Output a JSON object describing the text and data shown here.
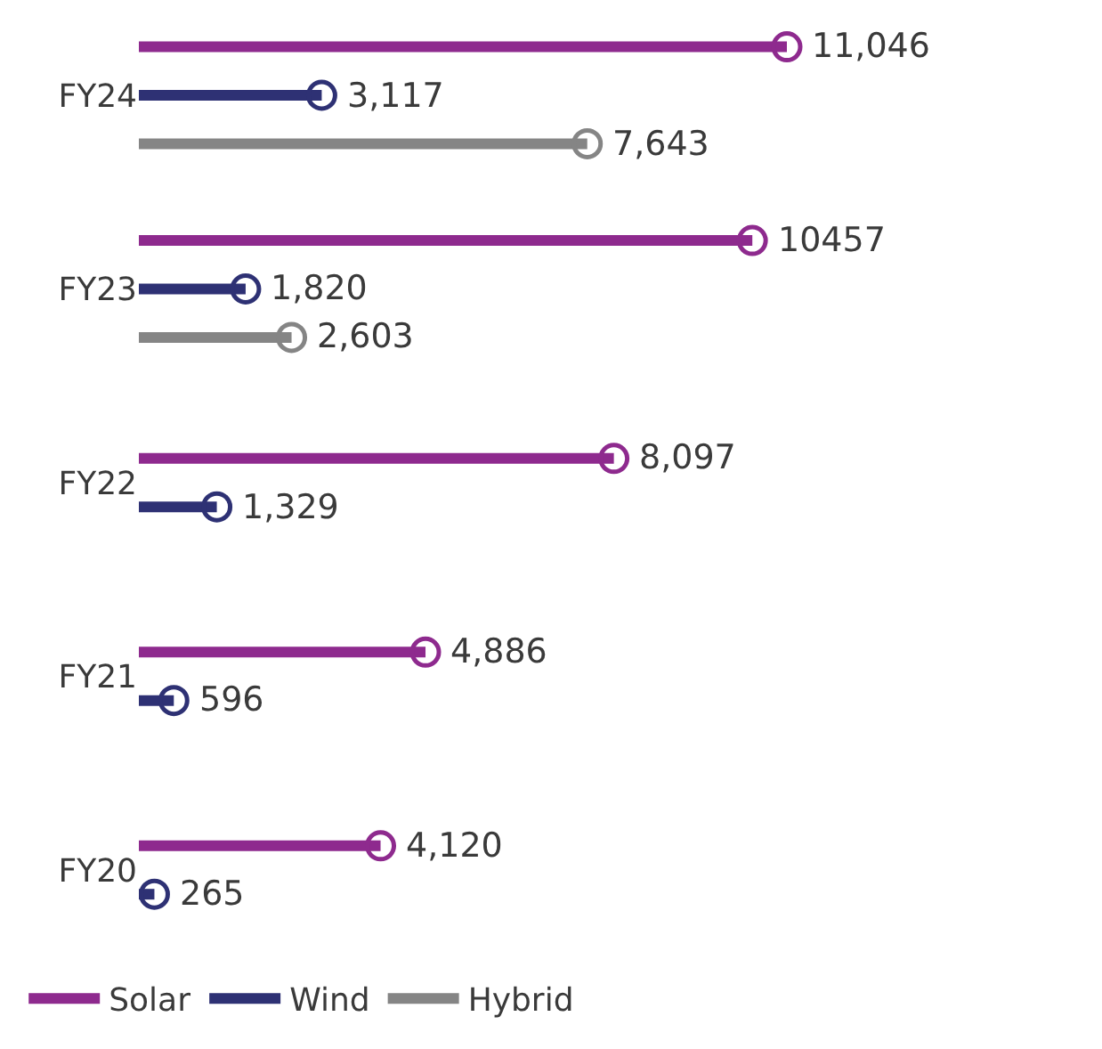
{
  "chart_data": {
    "type": "lollipop",
    "orientation": "horizontal",
    "categories": [
      "FY24",
      "FY23",
      "FY22",
      "FY21",
      "FY20"
    ],
    "series": [
      {
        "name": "Solar",
        "color": "#8e2a8e",
        "values": [
          11046,
          10457,
          8097,
          4886,
          4120
        ],
        "value_labels": [
          "11,046",
          "10457",
          "8,097",
          "4,886",
          "4,120"
        ]
      },
      {
        "name": "Wind",
        "color": "#2e3174",
        "values": [
          3117,
          1820,
          1329,
          596,
          265
        ],
        "value_labels": [
          "3,117",
          "1,820",
          "1,329",
          "596",
          "265"
        ]
      },
      {
        "name": "Hybrid",
        "color": "#858585",
        "values": [
          7643,
          2603,
          null,
          null,
          null
        ],
        "value_labels": [
          "7,643",
          "2,603",
          null,
          null,
          null
        ]
      }
    ],
    "tick_labels": "y",
    "legend": "bottom left",
    "marker": "circle"
  }
}
